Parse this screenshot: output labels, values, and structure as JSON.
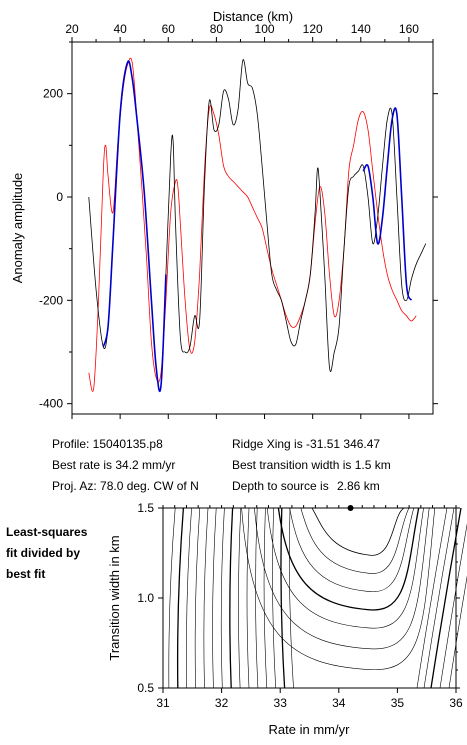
{
  "chart_data": [
    {
      "type": "line",
      "xlabel": "Distance (km)",
      "ylabel": "Anomaly amplitude",
      "xlim": [
        20,
        170
      ],
      "ylim": [
        -420,
        300
      ],
      "xticks": [
        20,
        40,
        60,
        80,
        100,
        120,
        140,
        160
      ],
      "yticks": [
        -400,
        -200,
        0,
        200
      ],
      "grid": false,
      "series": [
        {
          "color": "#000000",
          "x": [
            27,
            30,
            33,
            35,
            37,
            40,
            43,
            45,
            47,
            50,
            53,
            55,
            57,
            59,
            61,
            62,
            63,
            65,
            67,
            69,
            71,
            73,
            75,
            77,
            79,
            81,
            83,
            85,
            87,
            89,
            91,
            93,
            95,
            97,
            99,
            101,
            103,
            105,
            107,
            109,
            111,
            113,
            115,
            117,
            119,
            121,
            122,
            123,
            125,
            127,
            129,
            131,
            133,
            135,
            137,
            139,
            141,
            143,
            145,
            147,
            149,
            151,
            153,
            155,
            157,
            159,
            161,
            163,
            165,
            167
          ],
          "y": [
            0,
            -180,
            -290,
            -250,
            -90,
            160,
            260,
            230,
            150,
            10,
            -200,
            -330,
            -365,
            -150,
            80,
            108,
            -50,
            -270,
            -300,
            -290,
            -230,
            -240,
            20,
            185,
            130,
            140,
            205,
            190,
            140,
            170,
            265,
            220,
            210,
            160,
            60,
            -50,
            -150,
            -180,
            -200,
            -240,
            -280,
            -285,
            -240,
            -200,
            -150,
            -30,
            55,
            10,
            -150,
            -330,
            -300,
            -250,
            -100,
            20,
            40,
            50,
            60,
            0,
            -90,
            -40,
            60,
            150,
            160,
            0,
            -170,
            -200,
            -160,
            -130,
            -110,
            -90
          ]
        },
        {
          "color": "#ff0000",
          "x": [
            27,
            29,
            31,
            33,
            34,
            35,
            37,
            39,
            41,
            43,
            45,
            47,
            49,
            51,
            53,
            55,
            57,
            59,
            61,
            63,
            64,
            65,
            67,
            69,
            71,
            73,
            75,
            77,
            79,
            81,
            83,
            85,
            87,
            89,
            91,
            93,
            95,
            97,
            99,
            101,
            103,
            105,
            107,
            109,
            111,
            113,
            115,
            117,
            119,
            121,
            123,
            125,
            127,
            129,
            131,
            133,
            135,
            137,
            139,
            141,
            143,
            145,
            147,
            149,
            151,
            153,
            155,
            157,
            159,
            161,
            163
          ],
          "y": [
            -340,
            -370,
            -200,
            50,
            100,
            40,
            -30,
            100,
            200,
            255,
            260,
            150,
            20,
            -120,
            -280,
            -350,
            -340,
            -200,
            -30,
            30,
            20,
            -50,
            -200,
            -295,
            -280,
            -150,
            50,
            170,
            160,
            120,
            60,
            40,
            30,
            20,
            10,
            0,
            -20,
            -40,
            -60,
            -100,
            -140,
            -170,
            -200,
            -230,
            -250,
            -250,
            -230,
            -200,
            -150,
            -50,
            20,
            -30,
            -150,
            -230,
            -200,
            -100,
            50,
            100,
            150,
            165,
            130,
            50,
            -30,
            -100,
            -150,
            -180,
            -200,
            -220,
            -230,
            -240,
            -230
          ]
        },
        {
          "color": "#0000cc",
          "x": [
            33,
            35,
            37,
            40,
            43,
            45,
            47,
            50,
            53,
            55,
            57,
            59,
            141,
            143,
            145,
            147,
            149,
            151,
            153,
            155,
            157,
            159,
            161
          ],
          "y": [
            -290,
            -250,
            -90,
            160,
            260,
            230,
            150,
            10,
            -200,
            -330,
            -365,
            -150,
            50,
            60,
            0,
            -90,
            -40,
            60,
            150,
            160,
            0,
            -170,
            -200
          ]
        }
      ]
    },
    {
      "type": "contour",
      "xlabel": "Rate in mm/yr",
      "ylabel": "Transition width in km",
      "xlim": [
        31,
        36
      ],
      "ylim": [
        0.5,
        1.5
      ],
      "xticks": [
        31,
        32,
        33,
        34,
        35,
        36
      ],
      "yticks": [
        0.5,
        1.0,
        1.5
      ],
      "best_fit": {
        "rate": 34.2,
        "width": 1.5
      }
    }
  ],
  "info": {
    "profile": "Profile: 15040135.p8",
    "best_rate": "Best rate is 34.2 mm/yr",
    "proj_az": "Proj. Az: 78.0 deg. CW of N",
    "ridge_xing": "Ridge Xing is -31.51  346.47",
    "best_width": "Best transition width is 1.5 km",
    "depth_label": "Depth to source is",
    "depth_value": "2.86 km"
  },
  "side_note": {
    "line1": "Least-squares",
    "line2": "fit divided by",
    "line3": "best fit"
  }
}
